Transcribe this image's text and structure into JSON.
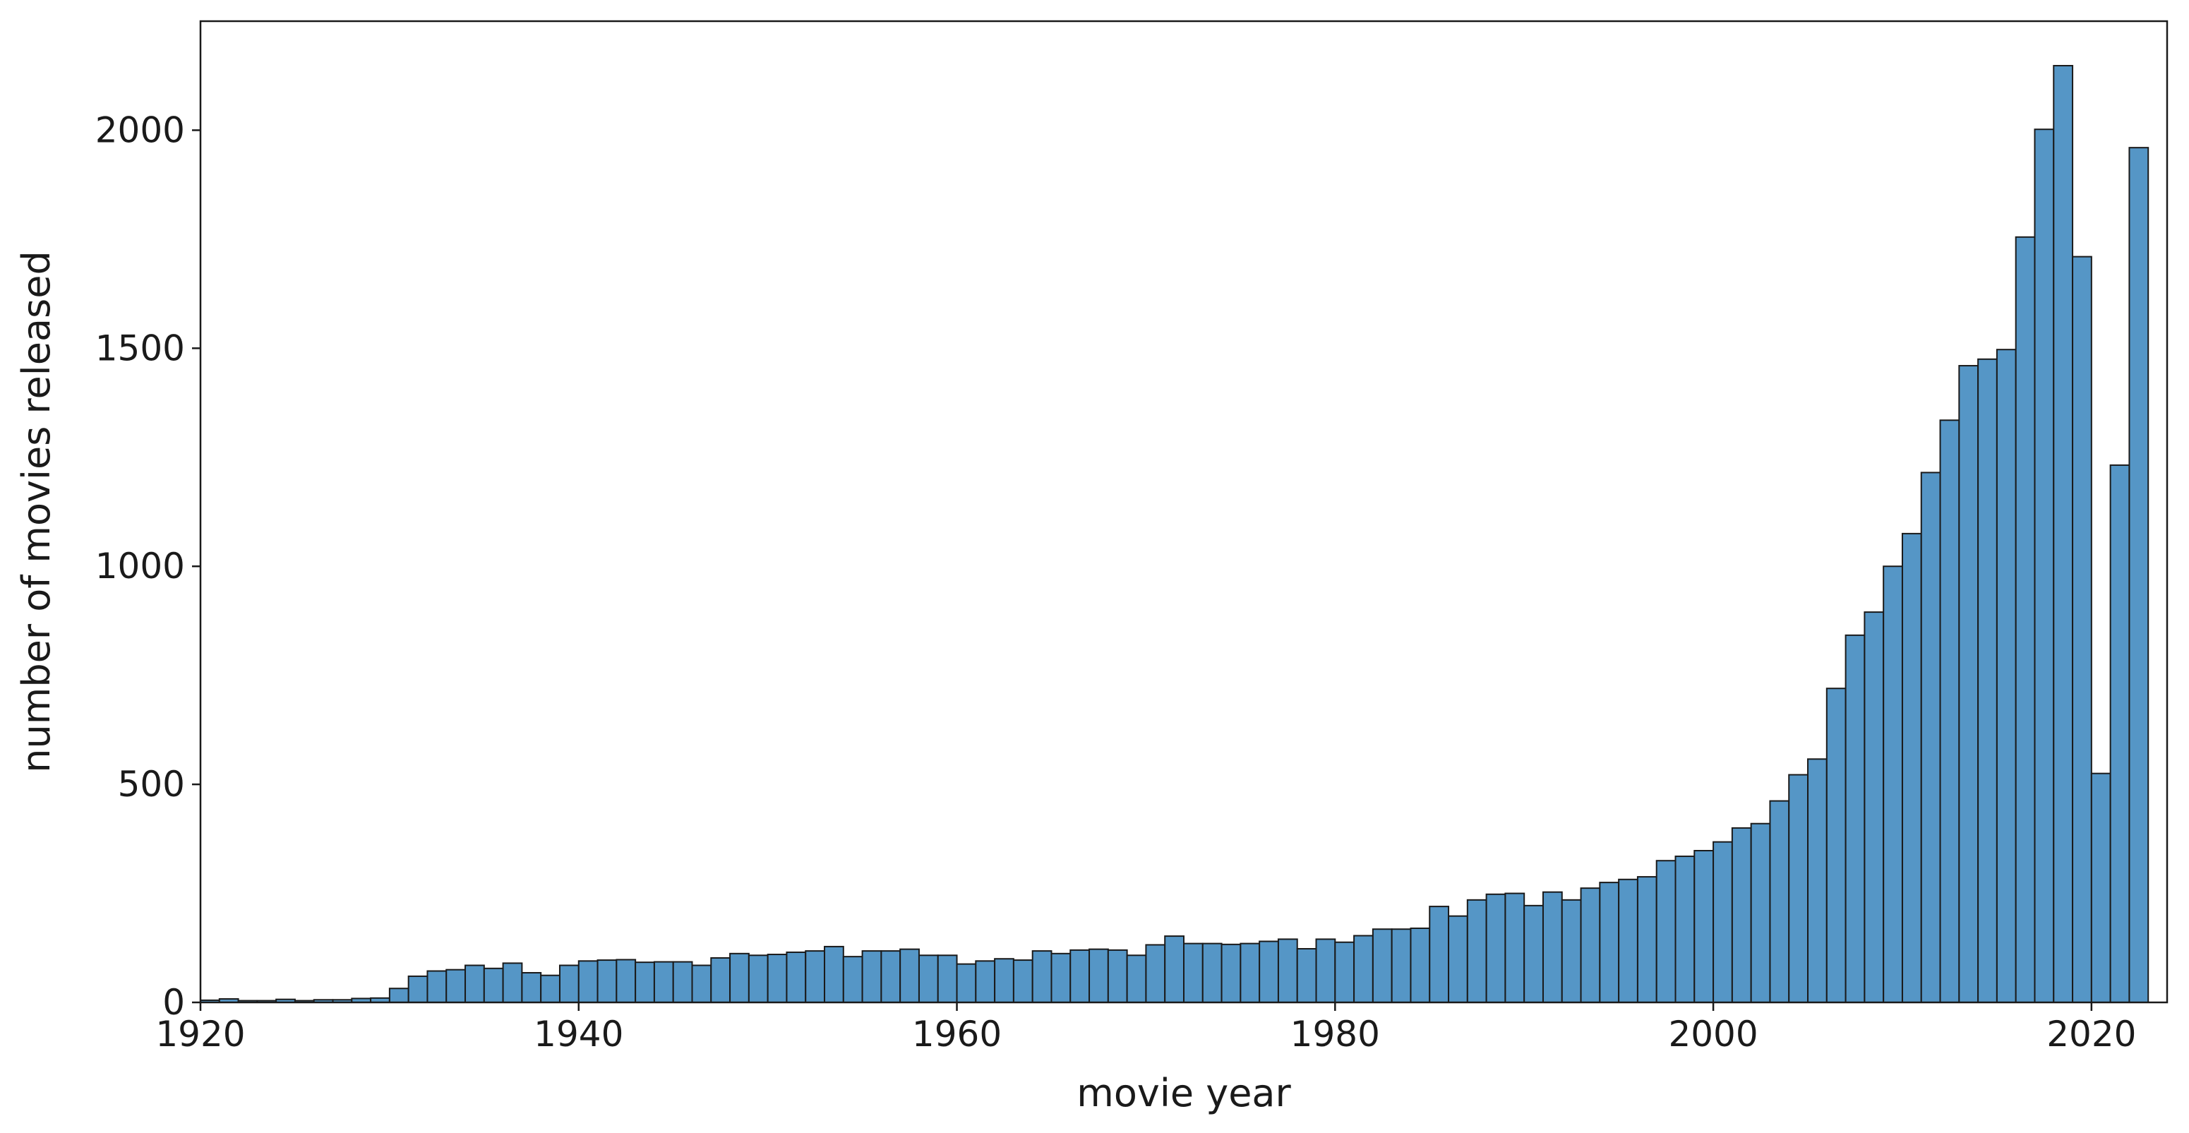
{
  "chart_data": {
    "type": "bar",
    "title": "",
    "xlabel": "movie year",
    "ylabel": "number of movies released",
    "xlim": [
      1920,
      2024
    ],
    "ylim": [
      0,
      2250
    ],
    "xticks": [
      1920,
      1940,
      1960,
      1980,
      2000,
      2020
    ],
    "yticks": [
      0,
      500,
      1000,
      1500,
      2000
    ],
    "bar_color": "#5596c6",
    "edge_color": "#1a1a1a",
    "bin_start": 1920,
    "bin_width": 1,
    "values": [
      5,
      8,
      4,
      4,
      7,
      4,
      6,
      6,
      9,
      10,
      32,
      60,
      72,
      75,
      85,
      78,
      90,
      68,
      62,
      85,
      95,
      97,
      98,
      92,
      93,
      93,
      85,
      102,
      112,
      108,
      110,
      115,
      118,
      128,
      105,
      118,
      118,
      122,
      108,
      108,
      88,
      95,
      100,
      97,
      118,
      112,
      120,
      122,
      120,
      108,
      132,
      152,
      135,
      135,
      133,
      135,
      140,
      145,
      123,
      145,
      138,
      153,
      168,
      168,
      170,
      220,
      198,
      235,
      248,
      250,
      222,
      253,
      235,
      262,
      275,
      282,
      288,
      325,
      335,
      348,
      368,
      400,
      410,
      462,
      522,
      558,
      720,
      842,
      895,
      1000,
      1075,
      1215,
      1335,
      1460,
      1475,
      1497,
      1755,
      2002,
      2148,
      1710,
      525,
      1232,
      1960
    ]
  }
}
